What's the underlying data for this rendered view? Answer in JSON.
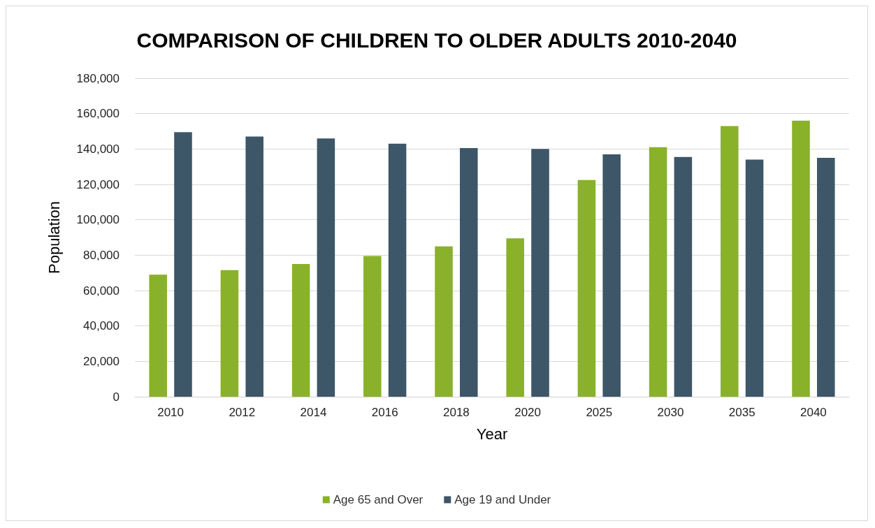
{
  "chart_data": {
    "type": "bar",
    "title": "COMPARISON OF CHILDREN TO OLDER ADULTS 2010-2040",
    "xlabel": "Year",
    "ylabel": "Population",
    "categories": [
      "2010",
      "2012",
      "2014",
      "2016",
      "2018",
      "2020",
      "2025",
      "2030",
      "2035",
      "2040"
    ],
    "series": [
      {
        "name": "Age 65 and Over",
        "color": "#8ab12a",
        "values": [
          69000,
          71500,
          75000,
          79500,
          85000,
          89500,
          122500,
          141000,
          153000,
          156000
        ]
      },
      {
        "name": "Age 19 and Under",
        "color": "#3d5668",
        "values": [
          149500,
          147000,
          146000,
          143000,
          140500,
          140000,
          137000,
          135500,
          134000,
          135000
        ]
      }
    ],
    "ylim": [
      0,
      180000
    ],
    "yticks": [
      0,
      {
        "value": 20000,
        "label": "20,000"
      },
      {
        "value": 40000,
        "label": "40,000"
      },
      {
        "value": 60000,
        "label": "60,000"
      },
      {
        "value": 80000,
        "label": "80,000"
      },
      {
        "value": 100000,
        "label": "100,000"
      },
      {
        "value": 120000,
        "label": "120,000"
      },
      {
        "value": 140000,
        "label": "140,000"
      },
      {
        "value": 160000,
        "label": "160,000"
      },
      {
        "value": 180000,
        "label": "180,000"
      }
    ],
    "grid": "y",
    "legend": "bottom"
  }
}
